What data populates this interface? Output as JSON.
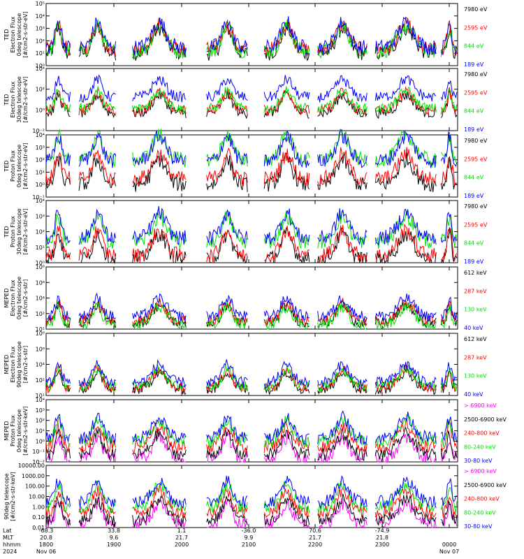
{
  "chart_data": [
    {
      "type": "line",
      "ylabel": [
        "TED",
        "Electron Flux",
        "0deg telescope",
        "[#/cm2-s-str-eV]"
      ],
      "yscale": "log",
      "ylim": [
        1,
        100000
      ],
      "ytick_labels": [
        "10⁰",
        "10¹",
        "10²",
        "10³",
        "10⁴",
        "10⁵"
      ],
      "legend_position": "right",
      "series": [
        {
          "name": "7980 eV",
          "color": "#000000",
          "base": 10
        },
        {
          "name": "2595 eV",
          "color": "#ff0000",
          "base": 20
        },
        {
          "name": "844 eV",
          "color": "#00e000",
          "base": 15
        },
        {
          "name": "189 eV",
          "color": "#0000ff",
          "base": 30
        }
      ]
    },
    {
      "type": "line",
      "ylabel": [
        "TED",
        "Electron Flux",
        "30deg telescope",
        "[#/cm2-s-str-eV]"
      ],
      "yscale": "log",
      "ylim": [
        0.01,
        100000
      ],
      "ytick_labels": [
        "10⁻²",
        "10⁰",
        "10²",
        "10⁴"
      ],
      "legend_position": "right",
      "series": [
        {
          "name": "7980 eV",
          "color": "#000000",
          "base": 1
        },
        {
          "name": "2595 eV",
          "color": "#ff0000",
          "base": 2
        },
        {
          "name": "844 eV",
          "color": "#00e000",
          "base": 3
        },
        {
          "name": "189 eV",
          "color": "#0000ff",
          "base": 60
        }
      ]
    },
    {
      "type": "line",
      "ylabel": [
        "TED",
        "Proton Flux",
        "0deg telescope",
        "[#/cm2-s-str-eV]"
      ],
      "yscale": "log",
      "ylim": [
        0.1,
        10000
      ],
      "ytick_labels": [
        "10⁻¹",
        "10⁰",
        "10¹",
        "10²",
        "10³",
        "10⁴"
      ],
      "legend_position": "right",
      "series": [
        {
          "name": "7980 eV",
          "color": "#000000",
          "base": 1
        },
        {
          "name": "2595 eV",
          "color": "#ff0000",
          "base": 3
        },
        {
          "name": "844 eV",
          "color": "#00e000",
          "base": 100
        },
        {
          "name": "189 eV",
          "color": "#0000ff",
          "base": 80
        }
      ]
    },
    {
      "type": "line",
      "ylabel": [
        "TED",
        "Proton Flux",
        "30deg telescope",
        "[#/cm2-s-str-eV]"
      ],
      "yscale": "log",
      "ylim": [
        1,
        100000
      ],
      "ytick_labels": [
        "10⁰",
        "10¹",
        "10²",
        "10³",
        "10⁴"
      ],
      "legend_position": "right",
      "series": [
        {
          "name": "7980 eV",
          "color": "#000000",
          "base": 2
        },
        {
          "name": "2595 eV",
          "color": "#ff0000",
          "base": 4
        },
        {
          "name": "844 eV",
          "color": "#00e000",
          "base": 50
        },
        {
          "name": "189 eV",
          "color": "#0000ff",
          "base": 100
        }
      ]
    },
    {
      "type": "line",
      "ylabel": [
        "MEPED",
        "Electron Flux",
        "0deg telescope",
        "[#/cm2-s-str]"
      ],
      "yscale": "log",
      "ylim": [
        10,
        100000000
      ],
      "ytick_labels": [
        "10¹",
        "10²",
        "10⁴",
        "10⁶",
        "10⁸"
      ],
      "legend_position": "right",
      "series": [
        {
          "name": "612 keV",
          "color": "#000000",
          "base": 50
        },
        {
          "name": "287 keV",
          "color": "#ff0000",
          "base": 80
        },
        {
          "name": "130 keV",
          "color": "#00e000",
          "base": 30
        },
        {
          "name": "40 keV",
          "color": "#0000ff",
          "base": 300
        }
      ]
    },
    {
      "type": "line",
      "ylabel": [
        "MEPED",
        "Electron Flux",
        "90deg telescope",
        "[#/cm2-s-str]"
      ],
      "yscale": "log",
      "ylim": [
        10,
        100000000
      ],
      "ytick_labels": [
        "10¹",
        "10²",
        "10⁴",
        "10⁶",
        "10⁸"
      ],
      "legend_position": "right",
      "series": [
        {
          "name": "612 keV",
          "color": "#000000",
          "base": 50
        },
        {
          "name": "287 keV",
          "color": "#ff0000",
          "base": 80
        },
        {
          "name": "130 keV",
          "color": "#00e000",
          "base": 100
        },
        {
          "name": "40 keV",
          "color": "#0000ff",
          "base": 300
        }
      ]
    },
    {
      "type": "line",
      "ylabel": [
        "MEPED",
        "Proton Flux",
        "0deg telescope",
        "[#/cm2-s-str-keV]"
      ],
      "yscale": "log",
      "ylim": [
        0.01,
        10000
      ],
      "ytick_labels": [
        "10⁻²",
        "10⁻¹",
        "10⁰",
        "10¹",
        "10²",
        "10³",
        "10⁴"
      ],
      "legend_position": "right",
      "series": [
        {
          "name": "> 6900 keV",
          "color": "#ff00ff",
          "base": 0.02
        },
        {
          "name": "2500-6900 keV",
          "color": "#000000",
          "base": 0.05
        },
        {
          "name": "240-800 keV",
          "color": "#ff0000",
          "base": 0.3
        },
        {
          "name": "80-240 keV",
          "color": "#00e000",
          "base": 1
        },
        {
          "name": "30-80 keV",
          "color": "#0000ff",
          "base": 2
        }
      ]
    },
    {
      "type": "line",
      "ylabel": [
        "90deg telescope",
        "[#/cm2-s-str-keV]"
      ],
      "yscale": "log",
      "ylim": [
        0.01,
        10000
      ],
      "ytick_labels": [
        "0.01",
        "0.10",
        "1.00",
        "10.00",
        "100.00",
        "1000.00",
        "10000.00"
      ],
      "legend_position": "right",
      "series": [
        {
          "name": "> 6900 keV",
          "color": "#ff00ff",
          "base": 0.02
        },
        {
          "name": "2500-6900 keV",
          "color": "#000000",
          "base": 0.05
        },
        {
          "name": "240-800 keV",
          "color": "#ff0000",
          "base": 0.3
        },
        {
          "name": "80-240 keV",
          "color": "#00e000",
          "base": 1
        },
        {
          "name": "30-80 keV",
          "color": "#0000ff",
          "base": 3
        }
      ]
    }
  ],
  "x_axis": {
    "row_labels": [
      "Lat",
      "MLT",
      "hhmm",
      "2024"
    ],
    "columns": [
      {
        "lat": "-68.3",
        "mlt": "20.8",
        "hhmm": "1800",
        "date": "Nov 06"
      },
      {
        "lat": "33.8",
        "mlt": "9.6",
        "hhmm": "1900",
        "date": ""
      },
      {
        "lat": "1.1",
        "mlt": "21.7",
        "hhmm": "2000",
        "date": ""
      },
      {
        "lat": "-36.0",
        "mlt": "9.9",
        "hhmm": "2100",
        "date": ""
      },
      {
        "lat": "70.6",
        "mlt": "21.7",
        "hhmm": "2200",
        "date": ""
      },
      {
        "lat": "-74.9",
        "mlt": "21.8",
        "hhmm": "2300",
        "date": ""
      },
      {
        "lat": "",
        "mlt": "",
        "hhmm": "0000",
        "date": "Nov 07"
      }
    ]
  }
}
